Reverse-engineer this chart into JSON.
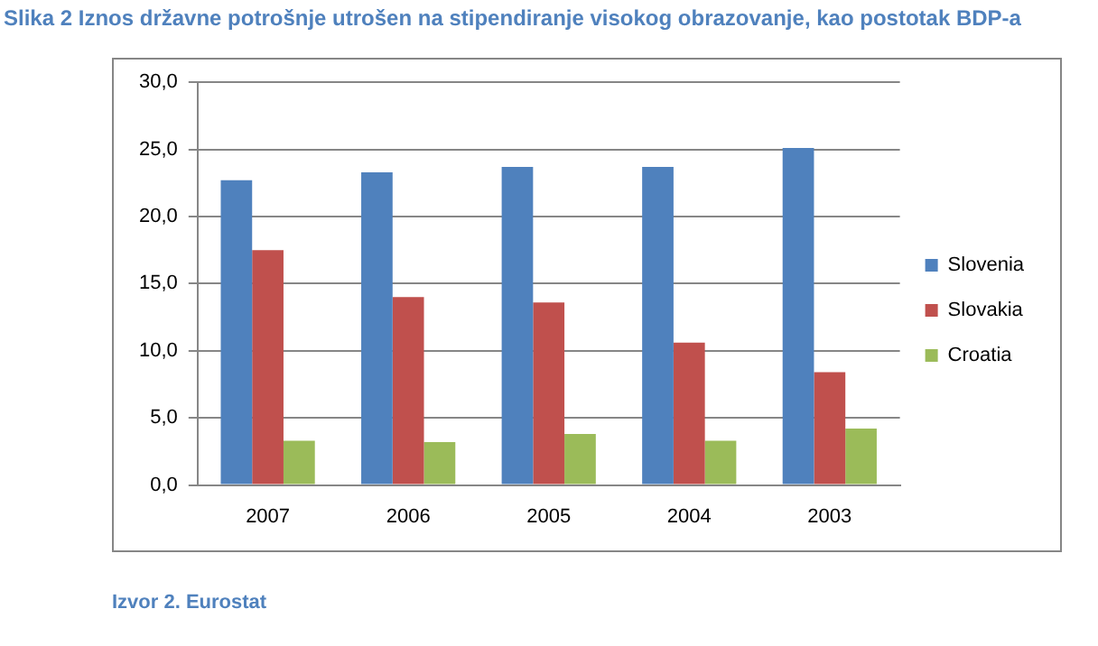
{
  "chart_data": {
    "type": "bar",
    "title": "Slika 2 Iznos državne potrošnje utrošen na stipendiranje visokog obrazovanje, kao postotak BDP-a",
    "annotations": [
      "Izvor 2. Eurostat"
    ],
    "categories": [
      "2007",
      "2006",
      "2005",
      "2004",
      "2003"
    ],
    "series": [
      {
        "name": "Slovenia",
        "color": "#4f81bd",
        "values": [
          22.7,
          23.3,
          23.7,
          23.7,
          25.1
        ]
      },
      {
        "name": "Slovakia",
        "color": "#c0504d",
        "values": [
          17.5,
          14.0,
          13.6,
          10.6,
          8.4
        ]
      },
      {
        "name": "Croatia",
        "color": "#9bbb59",
        "values": [
          3.3,
          3.2,
          3.8,
          3.3,
          4.2
        ]
      }
    ],
    "ylim": [
      0,
      30
    ],
    "yticks": [
      {
        "value": 0,
        "label": "0,0"
      },
      {
        "value": 5,
        "label": "5,0"
      },
      {
        "value": 10,
        "label": "10,0"
      },
      {
        "value": 15,
        "label": "15,0"
      },
      {
        "value": 20,
        "label": "20,0"
      },
      {
        "value": 25,
        "label": "25,0"
      },
      {
        "value": 30,
        "label": "30,0"
      }
    ],
    "grid": "y",
    "legend": "right"
  }
}
